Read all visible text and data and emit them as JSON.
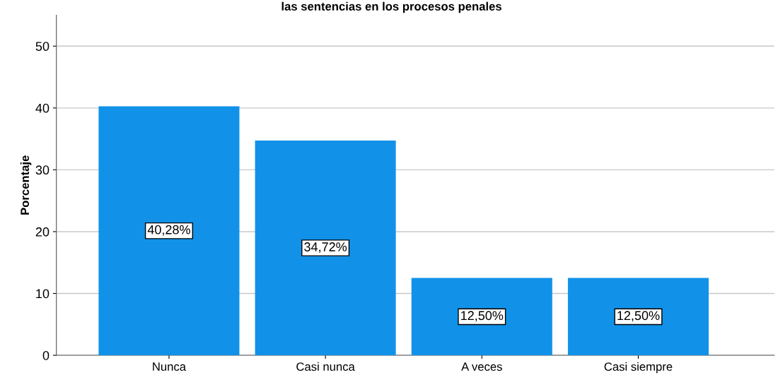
{
  "chart_data": {
    "type": "bar",
    "title": "las sentencias en los procesos penales",
    "ylabel": "Porcentaje",
    "categories": [
      "Nunca",
      "Casi nunca",
      "A veces",
      "Casi siempre"
    ],
    "values": [
      40.28,
      34.72,
      12.5,
      12.5
    ],
    "color": "#1192e8",
    "value_labels": [
      "40,28%",
      "34,72%",
      "12,50%",
      "12,50%"
    ],
    "ylim": [
      0,
      55
    ],
    "yticks": [
      0,
      10,
      20,
      30,
      40,
      50
    ],
    "grid": "y"
  }
}
